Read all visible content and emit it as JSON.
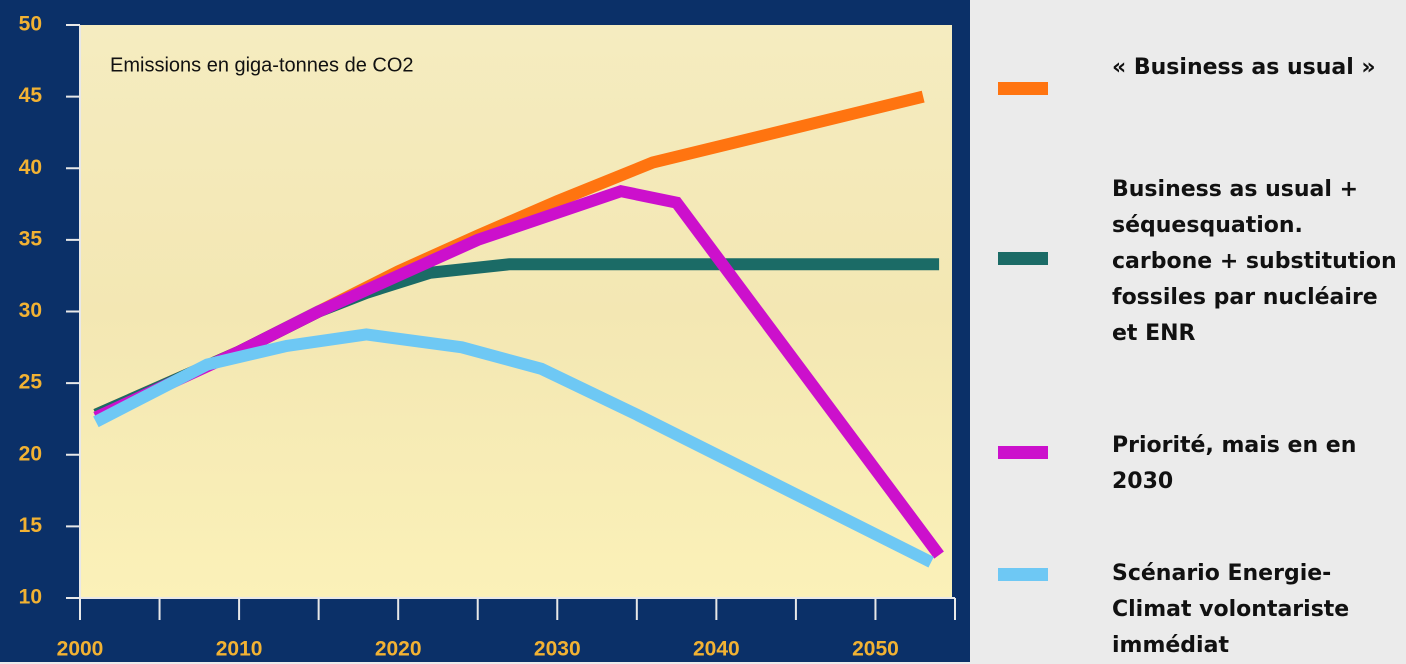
{
  "chart_data": {
    "type": "line",
    "title": "Emissions en giga-tonnes de CO2",
    "xlim": [
      2000,
      2055
    ],
    "xticks": [
      2000,
      2010,
      2020,
      2030,
      2040,
      2050
    ],
    "x_minor_ticks": [
      2005,
      2015,
      2025,
      2035,
      2045,
      2055
    ],
    "ylim": [
      10,
      50
    ],
    "yticks": [
      10,
      15,
      20,
      25,
      30,
      35,
      40,
      45,
      50
    ],
    "legend": "right",
    "series": [
      {
        "name": "« Business as usual »",
        "color": "#ff7410",
        "x": [
          2001,
          2010,
          2015,
          2020,
          2025,
          2030,
          2036,
          2053
        ],
        "values": [
          22.8,
          27.2,
          30,
          32.8,
          35.3,
          37.7,
          40.4,
          45
        ]
      },
      {
        "name": "Business as usual + séquesquation. carbone + substitution fossiles par nucléaire et ENR",
        "color": "#1b6b66",
        "x": [
          2001,
          2010,
          2015,
          2018,
          2022,
          2027,
          2054
        ],
        "values": [
          22.8,
          27.2,
          30,
          31.3,
          32.7,
          33.3,
          33.3
        ]
      },
      {
        "name": "Priorité, mais en en 2030",
        "color": "#cc10cc",
        "x": [
          2001,
          2010,
          2015,
          2020,
          2025,
          2034,
          2037.5,
          2054
        ],
        "values": [
          22.6,
          27.2,
          30,
          32.5,
          35,
          38.4,
          37.6,
          13
        ]
      },
      {
        "name": "Scénario Energie-Climat volontariste immédiat",
        "color": "#6ec8f4",
        "x": [
          2001,
          2008,
          2013,
          2018,
          2024,
          2029,
          2035,
          2053.5
        ],
        "values": [
          22.3,
          26.3,
          27.6,
          28.4,
          27.5,
          26,
          22.8,
          12.5
        ]
      }
    ]
  }
}
